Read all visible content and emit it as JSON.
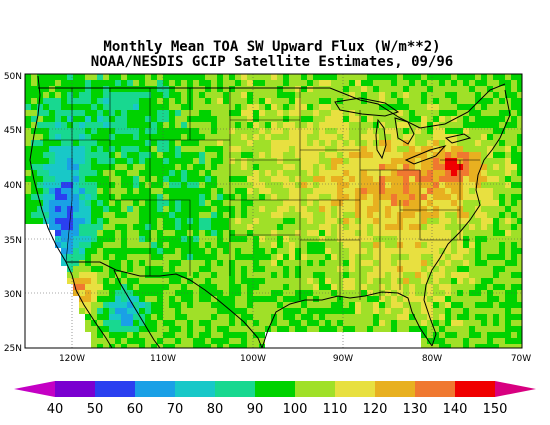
{
  "title": {
    "line1": "Monthly Mean TOA SW Upward Flux (W/m**2)",
    "line2": "NOAA/NESDIS GCIP Satellite Estimates, 09/96"
  },
  "map": {
    "lon_range": [
      -125,
      -70
    ],
    "lat_range": [
      25,
      50
    ],
    "x_ticks": [
      "120W",
      "110W",
      "100W",
      "90W",
      "80W",
      "70W"
    ],
    "y_ticks": [
      "50N",
      "45N",
      "40N",
      "35N",
      "30N",
      "25N"
    ]
  },
  "colorbar": {
    "levels": [
      "40",
      "50",
      "60",
      "70",
      "80",
      "90",
      "100",
      "110",
      "120",
      "130",
      "140",
      "150"
    ],
    "colors": [
      "#c400c4",
      "#7a00d0",
      "#2a40f0",
      "#1aa0e6",
      "#18c8c8",
      "#18d890",
      "#00d200",
      "#a0e028",
      "#e8e040",
      "#e8b020",
      "#f07830",
      "#f00000",
      "#d80080"
    ]
  }
}
